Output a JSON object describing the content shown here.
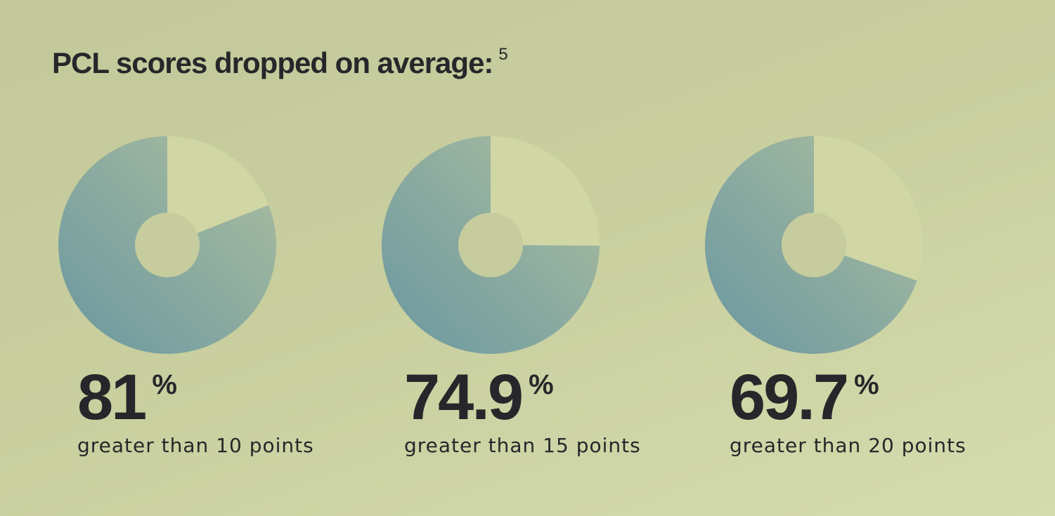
{
  "header": {
    "title": "PCL scores dropped on average:",
    "footnote": "5"
  },
  "chart_data": {
    "type": "pie",
    "charts": [
      {
        "value": 81,
        "value_label": "81",
        "unit": "%",
        "caption": "greater than 10 points"
      },
      {
        "value": 74.9,
        "value_label": "74.9",
        "unit": "%",
        "caption": "greater than 15 points"
      },
      {
        "value": 69.7,
        "value_label": "69.7",
        "unit": "%",
        "caption": "greater than 20 points"
      }
    ],
    "colors": {
      "filled_dark": "#6a97a0",
      "filled_light": "#adbf9f",
      "remainder": "#d0d6a4",
      "hole": "#c6cc9d"
    }
  }
}
